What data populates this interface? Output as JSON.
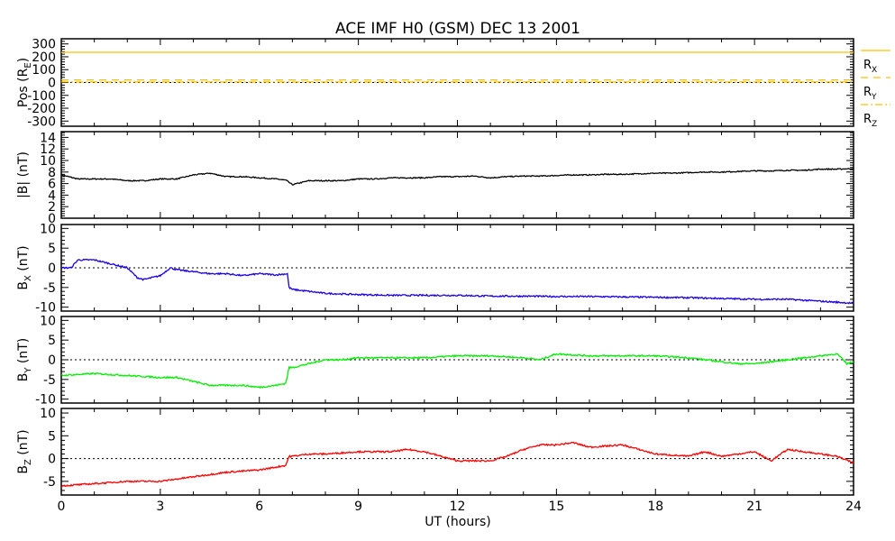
{
  "chart_data": {
    "type": "line",
    "title": "ACE IMF H0 (GSM)   DEC 13 2001",
    "xlabel": "UT (hours)",
    "xlim": [
      0,
      24
    ],
    "xticks": [
      0,
      3,
      6,
      9,
      12,
      15,
      18,
      21,
      24
    ],
    "panels": [
      {
        "ylabel": "Pos (R",
        "ylabel_sub": "E",
        "ylabel_suffix": ")",
        "ylim": [
          -340,
          340
        ],
        "yticks": [
          -300,
          -200,
          -100,
          0,
          100,
          200,
          300
        ],
        "zero_line": true,
        "legend": "right",
        "series": [
          {
            "name": "R",
            "sub": "X",
            "color": "#ffc000",
            "dash": "",
            "x": [
              0,
              24
            ],
            "values": [
              235,
              235
            ]
          },
          {
            "name": "R",
            "sub": "Y",
            "color": "#ffc000",
            "dash": "8,6",
            "x": [
              0,
              24
            ],
            "values": [
              20,
              20
            ]
          },
          {
            "name": "R",
            "sub": "Z",
            "color": "#ffc000",
            "dash": "8,3,2,3",
            "x": [
              0,
              24
            ],
            "values": [
              4,
              4
            ]
          }
        ]
      },
      {
        "ylabel": "|B| (nT)",
        "ylim": [
          0,
          15
        ],
        "yticks": [
          0,
          2,
          4,
          6,
          8,
          10,
          12,
          14
        ],
        "zero_line": false,
        "series": [
          {
            "name": "|B|",
            "color": "#000000",
            "x": [
              0,
              0.5,
              1,
              1.5,
              2,
              2.5,
              3,
              3.5,
              4,
              4.5,
              5,
              5.5,
              6,
              6.5,
              6.8,
              7,
              7.5,
              8,
              8.5,
              9,
              9.5,
              10,
              10.5,
              11,
              11.5,
              12,
              12.5,
              13,
              13.5,
              14,
              14.5,
              15,
              15.5,
              16,
              16.5,
              17,
              17.5,
              18,
              18.5,
              19,
              19.5,
              20,
              20.5,
              21,
              21.5,
              22,
              22.5,
              23,
              23.5,
              24
            ],
            "values": [
              7.5,
              6.8,
              6.8,
              6.8,
              6.5,
              6.5,
              6.8,
              6.8,
              7.5,
              7.8,
              7.2,
              7.2,
              7.0,
              6.8,
              6.6,
              5.8,
              6.5,
              6.5,
              6.5,
              6.8,
              6.8,
              7.0,
              7.0,
              7.0,
              7.2,
              7.2,
              7.3,
              7.0,
              7.2,
              7.3,
              7.3,
              7.4,
              7.5,
              7.5,
              7.6,
              7.6,
              7.7,
              7.8,
              7.8,
              7.9,
              8.0,
              8.0,
              8.1,
              8.2,
              8.2,
              8.3,
              8.3,
              8.5,
              8.5,
              8.6
            ]
          }
        ]
      },
      {
        "ylabel": "B",
        "ylabel_sub": "X",
        "ylabel_suffix": " (nT)",
        "ylim": [
          -11,
          11
        ],
        "yticks": [
          -10,
          -5,
          0,
          5,
          10
        ],
        "zero_line": true,
        "series": [
          {
            "name": "Bx",
            "color": "#1a00e6",
            "x": [
              0,
              0.3,
              0.5,
              1,
              1.5,
              2,
              2.3,
              2.5,
              3,
              3.3,
              3.5,
              4,
              4.5,
              5,
              5.5,
              6,
              6.5,
              6.85,
              6.9,
              7,
              7.5,
              8,
              9,
              10,
              11,
              12,
              13,
              14,
              15,
              16,
              17,
              18,
              19,
              20,
              21,
              22,
              23,
              24
            ],
            "values": [
              0,
              0,
              2,
              2,
              1,
              0,
              -2.5,
              -3,
              -2,
              0,
              -0.5,
              -1,
              -1.5,
              -1.5,
              -2,
              -1.5,
              -1.8,
              -1.5,
              -5,
              -5.5,
              -6,
              -6.5,
              -6.8,
              -7,
              -7,
              -7,
              -7.2,
              -7.2,
              -7.3,
              -7.3,
              -7.4,
              -7.5,
              -7.6,
              -7.8,
              -8,
              -8,
              -8.5,
              -9
            ]
          }
        ]
      },
      {
        "ylabel": "B",
        "ylabel_sub": "Y",
        "ylabel_suffix": " (nT)",
        "ylim": [
          -11,
          11
        ],
        "yticks": [
          -10,
          -5,
          0,
          5,
          10
        ],
        "zero_line": true,
        "series": [
          {
            "name": "By",
            "color": "#00ee00",
            "x": [
              0,
              1,
              2,
              3,
              3.5,
              4,
              4.5,
              5,
              5.5,
              6,
              6.5,
              6.8,
              6.9,
              7,
              7.5,
              8,
              8.5,
              9,
              10,
              11,
              12,
              13,
              14,
              14.5,
              15,
              16,
              17,
              18,
              19,
              20,
              20.5,
              21,
              22,
              23,
              23.5,
              23.8,
              24
            ],
            "values": [
              -4,
              -3.5,
              -4,
              -4.5,
              -4.5,
              -5.5,
              -6.5,
              -6.5,
              -6.5,
              -7,
              -6.5,
              -6,
              -2,
              -2,
              -1,
              0,
              0,
              0.5,
              0.5,
              0.5,
              1,
              1,
              0.5,
              0,
              1.5,
              1,
              1,
              1,
              0.5,
              -0.5,
              -1,
              -1,
              0,
              1,
              1.5,
              -1,
              -0.5
            ]
          }
        ]
      },
      {
        "ylabel": "B",
        "ylabel_sub": "Z",
        "ylabel_suffix": " (nT)",
        "ylim": [
          -8,
          11
        ],
        "yticks": [
          -5,
          0,
          5,
          10
        ],
        "zero_line": true,
        "series": [
          {
            "name": "Bz",
            "color": "#ff0000",
            "x": [
              0,
              1,
              2,
              3,
              4,
              5,
              6,
              6.8,
              6.9,
              7,
              7.5,
              8,
              9,
              10,
              10.5,
              11,
              11.5,
              12,
              13,
              13.5,
              14,
              14.5,
              15,
              15.5,
              16,
              17,
              17.5,
              18,
              19,
              19.5,
              20,
              21,
              21.5,
              22,
              23,
              23.5,
              24
            ],
            "values": [
              -6,
              -5.5,
              -5,
              -5,
              -4,
              -3,
              -2.5,
              -1.5,
              0.5,
              0.5,
              1,
              1,
              1.5,
              1.5,
              2,
              1.5,
              0.5,
              -0.5,
              -0.5,
              0.5,
              2,
              3,
              3,
              3.5,
              2.5,
              3,
              2,
              1,
              0.5,
              1.5,
              0.5,
              1.5,
              -0.5,
              2,
              1,
              0.5,
              -1
            ]
          }
        ]
      }
    ]
  }
}
